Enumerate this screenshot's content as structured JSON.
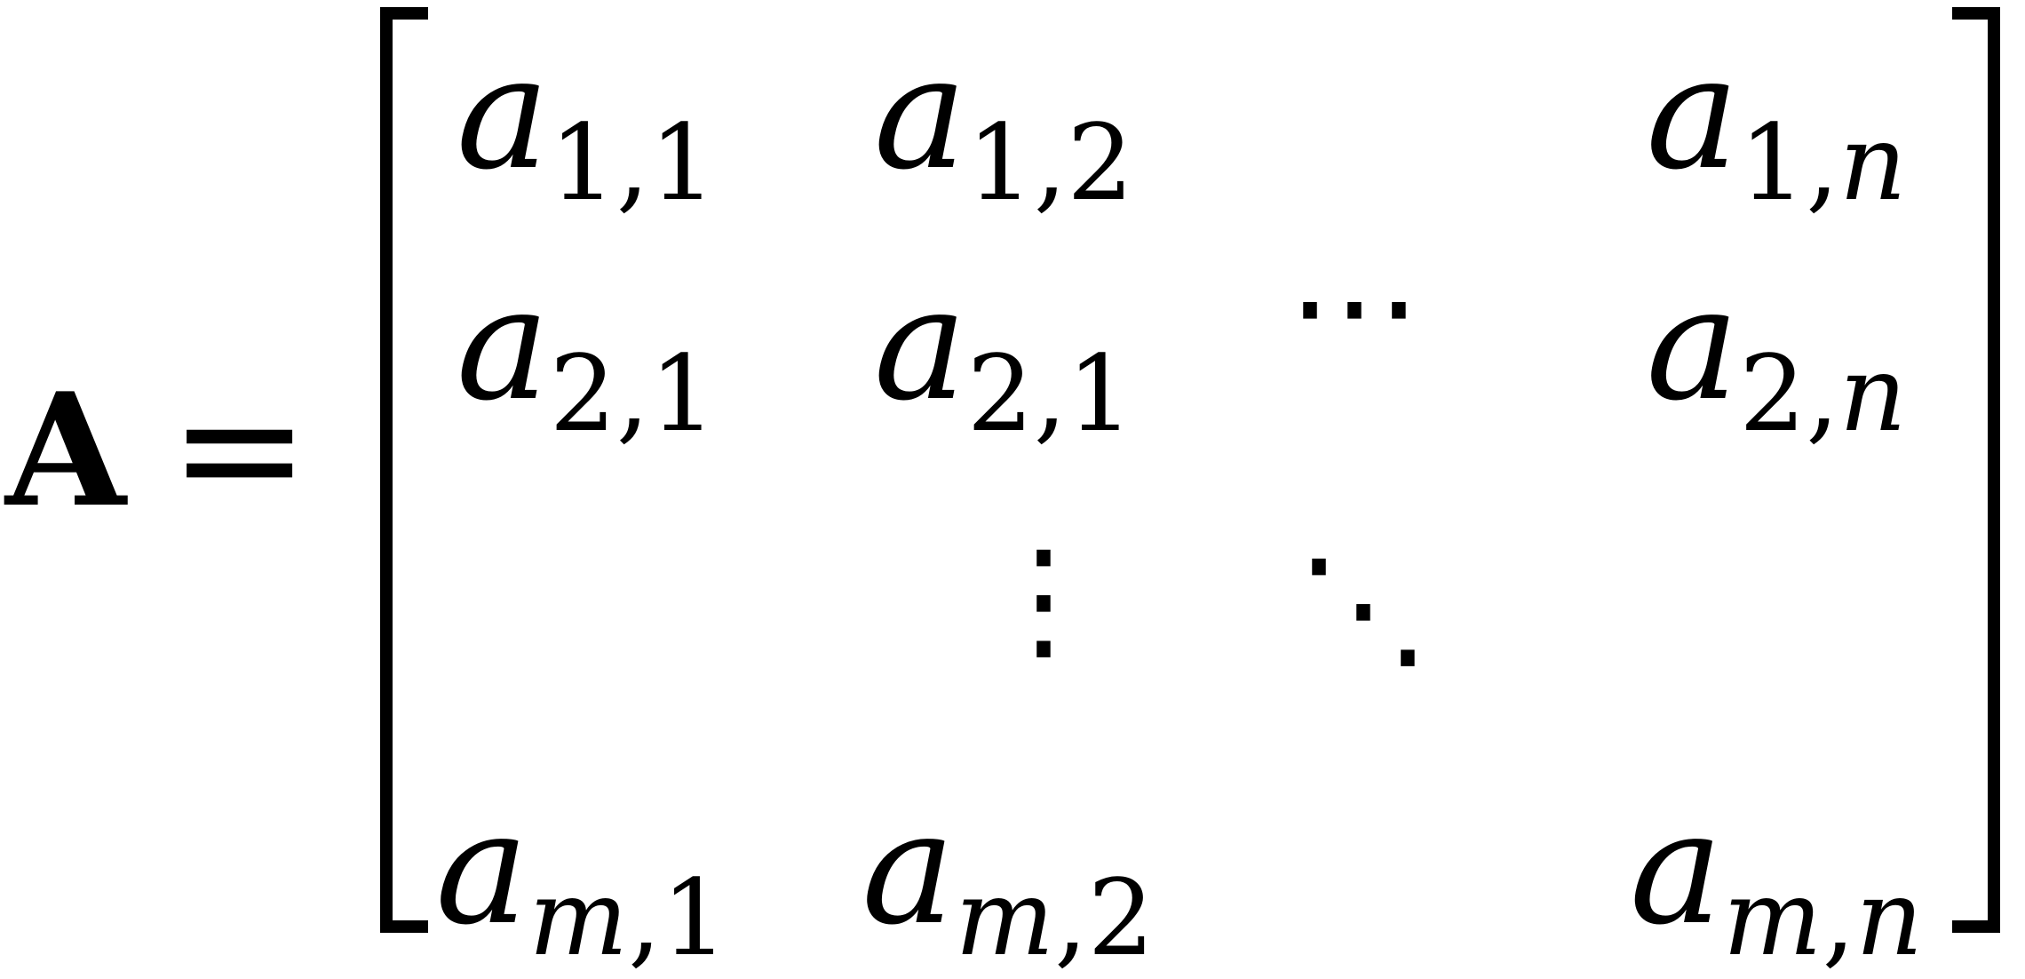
{
  "equation": {
    "lhs": "A",
    "relation": "=",
    "matrix": {
      "rows": [
        [
          {
            "base": "a",
            "row": "1",
            "col": "1"
          },
          {
            "base": "a",
            "row": "1",
            "col": "2"
          },
          null,
          {
            "base": "a",
            "row": "1",
            "col": "n"
          }
        ],
        [
          {
            "base": "a",
            "row": "2",
            "col": "1"
          },
          {
            "base": "a",
            "row": "2",
            "col": "1"
          },
          "⋯",
          {
            "base": "a",
            "row": "2",
            "col": "n"
          }
        ],
        [
          null,
          "⋮",
          "⋱",
          null
        ],
        [
          {
            "base": "a",
            "row": "m",
            "col": "1"
          },
          {
            "base": "a",
            "row": "m",
            "col": "2"
          },
          null,
          {
            "base": "a",
            "row": "m",
            "col": "n"
          }
        ]
      ],
      "separator": ","
    }
  }
}
